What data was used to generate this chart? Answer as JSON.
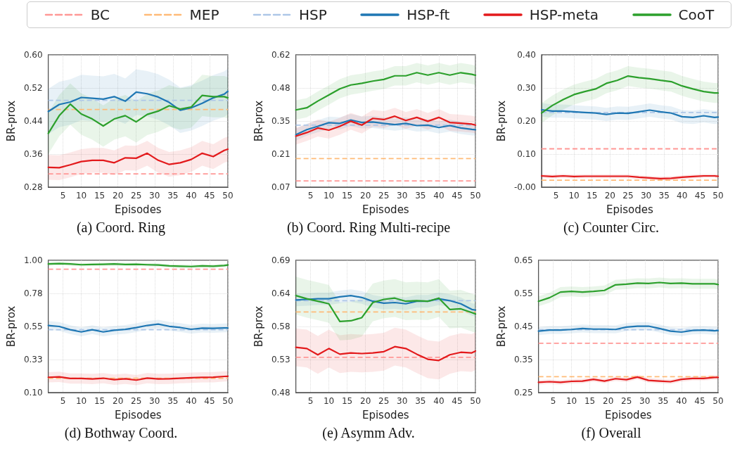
{
  "chart_data": [
    {
      "type": "line",
      "title": "(a) Coord. Ring",
      "xlabel": "Episodes",
      "ylabel": "BR-prox",
      "legend": "top",
      "grid": true,
      "marker": "none",
      "line_style": "solid",
      "xlim": [
        1,
        50
      ],
      "xticks": [
        5,
        10,
        15,
        20,
        25,
        30,
        35,
        40,
        45,
        50
      ],
      "ylim": [
        0.28,
        0.6
      ],
      "yticks": [
        {
          "value": 0.28,
          "label": "0.28"
        },
        {
          "value": 0.36,
          "label": "0.36"
        },
        {
          "value": 0.44,
          "label": "0.44"
        },
        {
          "value": 0.52,
          "label": "0.52"
        },
        {
          "value": 0.6,
          "label": "0.60"
        }
      ],
      "x": [
        1,
        4,
        7,
        10,
        13,
        16,
        19,
        22,
        25,
        28,
        31,
        34,
        37,
        40,
        43,
        46,
        49,
        50
      ],
      "ref_lines": [
        {
          "axis": "y",
          "value": 0.312,
          "label": "BC",
          "color": "#ff9896",
          "line_style": "dashed"
        },
        {
          "axis": "y",
          "value": 0.468,
          "label": "MEP",
          "color": "#ffbb78",
          "line_style": "dashed"
        },
        {
          "axis": "y",
          "value": 0.49,
          "label": "HSP",
          "color": "#aec7e8",
          "line_style": "dashed"
        }
      ],
      "series": [
        {
          "name": "HSP-ft",
          "color": "#1f77b4",
          "values": [
            0.463,
            0.48,
            0.486,
            0.497,
            0.495,
            0.493,
            0.499,
            0.488,
            0.51,
            0.506,
            0.498,
            0.485,
            0.466,
            0.472,
            0.483,
            0.496,
            0.505,
            0.512
          ],
          "lower": [
            0.408,
            0.425,
            0.431,
            0.442,
            0.44,
            0.438,
            0.444,
            0.433,
            0.455,
            0.451,
            0.443,
            0.43,
            0.411,
            0.417,
            0.428,
            0.441,
            0.45,
            0.457
          ],
          "upper": [
            0.518,
            0.535,
            0.541,
            0.552,
            0.55,
            0.548,
            0.554,
            0.543,
            0.565,
            0.561,
            0.553,
            0.54,
            0.521,
            0.527,
            0.538,
            0.551,
            0.56,
            0.567
          ]
        },
        {
          "name": "HSP-meta",
          "color": "#e31a1c",
          "values": [
            0.328,
            0.327,
            0.334,
            0.342,
            0.345,
            0.345,
            0.339,
            0.351,
            0.35,
            0.362,
            0.345,
            0.335,
            0.339,
            0.347,
            0.362,
            0.354,
            0.369,
            0.372
          ],
          "lower": [
            0.298,
            0.297,
            0.304,
            0.312,
            0.315,
            0.315,
            0.309,
            0.321,
            0.32,
            0.332,
            0.315,
            0.305,
            0.309,
            0.317,
            0.332,
            0.324,
            0.339,
            0.342
          ],
          "upper": [
            0.358,
            0.357,
            0.364,
            0.372,
            0.375,
            0.375,
            0.369,
            0.381,
            0.38,
            0.392,
            0.375,
            0.365,
            0.369,
            0.377,
            0.392,
            0.384,
            0.399,
            0.402
          ]
        },
        {
          "name": "CooT",
          "color": "#2ca02c",
          "values": [
            0.41,
            0.453,
            0.481,
            0.457,
            0.445,
            0.428,
            0.445,
            0.453,
            0.438,
            0.456,
            0.464,
            0.477,
            0.469,
            0.474,
            0.502,
            0.499,
            0.499,
            0.496
          ],
          "lower": [
            0.36,
            0.403,
            0.431,
            0.407,
            0.395,
            0.378,
            0.395,
            0.403,
            0.388,
            0.406,
            0.414,
            0.427,
            0.419,
            0.424,
            0.452,
            0.449,
            0.449,
            0.446
          ],
          "upper": [
            0.46,
            0.503,
            0.531,
            0.507,
            0.495,
            0.478,
            0.495,
            0.503,
            0.488,
            0.506,
            0.514,
            0.527,
            0.519,
            0.524,
            0.552,
            0.549,
            0.549,
            0.546
          ]
        }
      ]
    },
    {
      "type": "line",
      "title": "(b) Coord. Ring Multi-recipe",
      "xlabel": "Episodes",
      "ylabel": "BR-prox",
      "grid": true,
      "marker": "none",
      "line_style": "solid",
      "xlim": [
        1,
        50
      ],
      "xticks": [
        5,
        10,
        15,
        20,
        25,
        30,
        35,
        40,
        45,
        50
      ],
      "ylim": [
        0.07,
        0.62
      ],
      "yticks": [
        {
          "value": 0.07,
          "label": "0.07"
        },
        {
          "value": 0.2075,
          "label": "0.21"
        },
        {
          "value": 0.345,
          "label": "0.35"
        },
        {
          "value": 0.4825,
          "label": "0.48"
        },
        {
          "value": 0.62,
          "label": "0.62"
        }
      ],
      "x": [
        1,
        4,
        7,
        10,
        13,
        16,
        19,
        22,
        25,
        28,
        31,
        34,
        37,
        40,
        43,
        46,
        49,
        50
      ],
      "ref_lines": [
        {
          "axis": "y",
          "value": 0.096,
          "color": "#ff9896",
          "line_style": "dashed"
        },
        {
          "axis": "y",
          "value": 0.189,
          "color": "#ffbb78",
          "line_style": "dashed"
        },
        {
          "axis": "y",
          "value": 0.328,
          "color": "#aec7e8",
          "line_style": "dashed"
        }
      ],
      "series": [
        {
          "name": "HSP-ft",
          "color": "#1f77b4",
          "values": [
            0.288,
            0.309,
            0.323,
            0.338,
            0.335,
            0.349,
            0.339,
            0.341,
            0.335,
            0.33,
            0.335,
            0.326,
            0.328,
            0.318,
            0.326,
            0.316,
            0.31,
            0.309
          ],
          "lower": [
            0.263,
            0.284,
            0.298,
            0.313,
            0.31,
            0.324,
            0.314,
            0.316,
            0.31,
            0.305,
            0.31,
            0.301,
            0.303,
            0.293,
            0.301,
            0.291,
            0.285,
            0.284
          ],
          "upper": [
            0.313,
            0.334,
            0.348,
            0.363,
            0.36,
            0.374,
            0.364,
            0.366,
            0.36,
            0.355,
            0.36,
            0.351,
            0.353,
            0.343,
            0.351,
            0.341,
            0.335,
            0.334
          ]
        },
        {
          "name": "HSP-meta",
          "color": "#e31a1c",
          "values": [
            0.282,
            0.297,
            0.316,
            0.307,
            0.323,
            0.344,
            0.328,
            0.356,
            0.351,
            0.365,
            0.347,
            0.36,
            0.344,
            0.36,
            0.339,
            0.336,
            0.332,
            0.328
          ],
          "lower": [
            0.247,
            0.262,
            0.281,
            0.272,
            0.288,
            0.309,
            0.293,
            0.321,
            0.316,
            0.33,
            0.312,
            0.325,
            0.309,
            0.325,
            0.304,
            0.301,
            0.297,
            0.293
          ],
          "upper": [
            0.317,
            0.332,
            0.351,
            0.342,
            0.358,
            0.379,
            0.363,
            0.391,
            0.386,
            0.4,
            0.382,
            0.395,
            0.379,
            0.395,
            0.374,
            0.371,
            0.367,
            0.363
          ]
        },
        {
          "name": "CooT",
          "color": "#2ca02c",
          "values": [
            0.391,
            0.4,
            0.428,
            0.453,
            0.479,
            0.495,
            0.502,
            0.511,
            0.518,
            0.533,
            0.533,
            0.546,
            0.536,
            0.546,
            0.536,
            0.546,
            0.539,
            0.535
          ],
          "lower": [
            0.351,
            0.36,
            0.388,
            0.413,
            0.439,
            0.455,
            0.462,
            0.471,
            0.478,
            0.493,
            0.493,
            0.506,
            0.496,
            0.506,
            0.496,
            0.506,
            0.499,
            0.495
          ],
          "upper": [
            0.431,
            0.44,
            0.468,
            0.493,
            0.519,
            0.535,
            0.542,
            0.551,
            0.558,
            0.573,
            0.573,
            0.586,
            0.576,
            0.586,
            0.576,
            0.586,
            0.579,
            0.575
          ]
        }
      ]
    },
    {
      "type": "line",
      "title": "(c) Counter Circ.",
      "xlabel": "Episodes",
      "ylabel": "BR-prox",
      "grid": true,
      "marker": "none",
      "line_style": "solid",
      "xlim": [
        1,
        50
      ],
      "xticks": [
        5,
        10,
        15,
        20,
        25,
        30,
        35,
        40,
        45,
        50
      ],
      "ylim": [
        0,
        0.4
      ],
      "yticks": [
        {
          "value": 0,
          "label": "-0.00"
        },
        {
          "value": 0.1,
          "label": "0.10"
        },
        {
          "value": 0.2,
          "label": "0.20"
        },
        {
          "value": 0.3,
          "label": "0.30"
        },
        {
          "value": 0.4,
          "label": "0.40"
        }
      ],
      "x": [
        1,
        4,
        7,
        10,
        13,
        16,
        19,
        22,
        25,
        28,
        31,
        34,
        37,
        40,
        43,
        46,
        49,
        50
      ],
      "ref_lines": [
        {
          "axis": "y",
          "value": 0.116,
          "color": "#ff9896",
          "line_style": "dashed"
        },
        {
          "axis": "y",
          "value": 0.021,
          "color": "#ffbb78",
          "line_style": "dashed"
        },
        {
          "axis": "y",
          "value": 0.226,
          "color": "#aec7e8",
          "line_style": "dashed"
        }
      ],
      "series": [
        {
          "name": "HSP-ft",
          "color": "#1f77b4",
          "values": [
            0.234,
            0.23,
            0.23,
            0.228,
            0.226,
            0.224,
            0.22,
            0.224,
            0.223,
            0.228,
            0.233,
            0.228,
            0.224,
            0.213,
            0.211,
            0.216,
            0.211,
            0.212
          ],
          "lower": [
            0.214,
            0.21,
            0.21,
            0.208,
            0.206,
            0.204,
            0.2,
            0.204,
            0.203,
            0.208,
            0.213,
            0.208,
            0.204,
            0.193,
            0.191,
            0.196,
            0.191,
            0.192
          ],
          "upper": [
            0.254,
            0.25,
            0.25,
            0.248,
            0.246,
            0.244,
            0.24,
            0.244,
            0.243,
            0.248,
            0.253,
            0.248,
            0.244,
            0.233,
            0.231,
            0.236,
            0.231,
            0.232
          ]
        },
        {
          "name": "HSP-meta",
          "color": "#e31a1c",
          "values": [
            0.034,
            0.032,
            0.034,
            0.032,
            0.033,
            0.033,
            0.033,
            0.033,
            0.033,
            0.03,
            0.028,
            0.026,
            0.027,
            0.03,
            0.032,
            0.034,
            0.034,
            0.033
          ],
          "lower": [
            0.028,
            0.026,
            0.028,
            0.026,
            0.027,
            0.027,
            0.027,
            0.027,
            0.027,
            0.024,
            0.022,
            0.02,
            0.021,
            0.024,
            0.026,
            0.028,
            0.028,
            0.027
          ],
          "upper": [
            0.04,
            0.038,
            0.04,
            0.038,
            0.039,
            0.039,
            0.039,
            0.039,
            0.039,
            0.036,
            0.034,
            0.032,
            0.033,
            0.036,
            0.038,
            0.04,
            0.04,
            0.039
          ]
        },
        {
          "name": "CooT",
          "color": "#2ca02c",
          "values": [
            0.224,
            0.247,
            0.265,
            0.28,
            0.289,
            0.297,
            0.314,
            0.323,
            0.336,
            0.331,
            0.328,
            0.323,
            0.319,
            0.306,
            0.297,
            0.289,
            0.285,
            0.285
          ],
          "lower": [
            0.194,
            0.217,
            0.235,
            0.25,
            0.259,
            0.267,
            0.284,
            0.293,
            0.306,
            0.301,
            0.298,
            0.293,
            0.289,
            0.276,
            0.267,
            0.259,
            0.255,
            0.255
          ],
          "upper": [
            0.254,
            0.277,
            0.295,
            0.31,
            0.319,
            0.327,
            0.344,
            0.353,
            0.366,
            0.361,
            0.358,
            0.353,
            0.349,
            0.336,
            0.327,
            0.319,
            0.315,
            0.315
          ]
        }
      ]
    },
    {
      "type": "line",
      "title": "(d) Bothway Coord.",
      "xlabel": "Episodes",
      "ylabel": "BR-prox",
      "grid": true,
      "marker": "none",
      "line_style": "solid",
      "xlim": [
        1,
        50
      ],
      "xticks": [
        5,
        10,
        15,
        20,
        25,
        30,
        35,
        40,
        45,
        50
      ],
      "ylim": [
        0.1,
        1
      ],
      "yticks": [
        {
          "value": 0.1,
          "label": "0.10"
        },
        {
          "value": 0.325,
          "label": "0.33"
        },
        {
          "value": 0.55,
          "label": "0.55"
        },
        {
          "value": 0.775,
          "label": "0.78"
        },
        {
          "value": 1,
          "label": "1.00"
        }
      ],
      "x": [
        1,
        4,
        7,
        10,
        13,
        16,
        19,
        22,
        25,
        28,
        31,
        34,
        37,
        40,
        43,
        46,
        49,
        50
      ],
      "ref_lines": [
        {
          "axis": "y",
          "value": 0.94,
          "color": "#ff9896",
          "line_style": "dashed"
        },
        {
          "axis": "y",
          "value": 0.198,
          "color": "#ffbb78",
          "line_style": "dashed"
        },
        {
          "axis": "y",
          "value": 0.528,
          "color": "#aec7e8",
          "line_style": "dashed"
        }
      ],
      "series": [
        {
          "name": "HSP-ft",
          "color": "#1f77b4",
          "values": [
            0.557,
            0.55,
            0.528,
            0.513,
            0.528,
            0.513,
            0.524,
            0.53,
            0.542,
            0.557,
            0.566,
            0.551,
            0.543,
            0.531,
            0.539,
            0.537,
            0.54,
            0.54
          ],
          "lower": [
            0.527,
            0.52,
            0.498,
            0.483,
            0.498,
            0.483,
            0.494,
            0.5,
            0.512,
            0.527,
            0.536,
            0.521,
            0.513,
            0.501,
            0.509,
            0.507,
            0.51,
            0.51
          ],
          "upper": [
            0.587,
            0.58,
            0.558,
            0.543,
            0.558,
            0.543,
            0.554,
            0.56,
            0.572,
            0.587,
            0.596,
            0.581,
            0.573,
            0.561,
            0.569,
            0.567,
            0.57,
            0.57
          ]
        },
        {
          "name": "HSP-meta",
          "color": "#e31a1c",
          "values": [
            0.204,
            0.207,
            0.196,
            0.196,
            0.193,
            0.198,
            0.188,
            0.194,
            0.185,
            0.199,
            0.193,
            0.194,
            0.198,
            0.201,
            0.204,
            0.205,
            0.21,
            0.211
          ],
          "lower": [
            0.169,
            0.172,
            0.161,
            0.161,
            0.158,
            0.163,
            0.153,
            0.159,
            0.15,
            0.164,
            0.158,
            0.159,
            0.163,
            0.166,
            0.169,
            0.17,
            0.175,
            0.176
          ],
          "upper": [
            0.239,
            0.242,
            0.231,
            0.231,
            0.228,
            0.233,
            0.223,
            0.229,
            0.22,
            0.234,
            0.228,
            0.229,
            0.233,
            0.236,
            0.239,
            0.24,
            0.245,
            0.246
          ]
        },
        {
          "name": "CooT",
          "color": "#2ca02c",
          "values": [
            0.975,
            0.978,
            0.975,
            0.97,
            0.972,
            0.973,
            0.975,
            0.972,
            0.973,
            0.97,
            0.968,
            0.962,
            0.96,
            0.958,
            0.962,
            0.96,
            0.965,
            0.968
          ],
          "lower": [
            0.963,
            0.966,
            0.963,
            0.958,
            0.96,
            0.961,
            0.963,
            0.96,
            0.961,
            0.958,
            0.956,
            0.95,
            0.948,
            0.946,
            0.95,
            0.948,
            0.953,
            0.956
          ],
          "upper": [
            0.987,
            0.99,
            0.987,
            0.982,
            0.984,
            0.985,
            0.987,
            0.984,
            0.985,
            0.982,
            0.98,
            0.974,
            0.972,
            0.97,
            0.974,
            0.972,
            0.977,
            0.98
          ]
        }
      ]
    },
    {
      "type": "line",
      "title": "(e) Asymm Adv.",
      "xlabel": "Episodes",
      "ylabel": "BR-prox",
      "grid": true,
      "marker": "none",
      "line_style": "solid",
      "xlim": [
        1,
        50
      ],
      "xticks": [
        5,
        10,
        15,
        20,
        25,
        30,
        35,
        40,
        45,
        50
      ],
      "ylim": [
        0.48,
        0.69
      ],
      "yticks": [
        {
          "value": 0.48,
          "label": "0.48"
        },
        {
          "value": 0.5325,
          "label": "0.53"
        },
        {
          "value": 0.585,
          "label": "0.58"
        },
        {
          "value": 0.6375,
          "label": "0.64"
        },
        {
          "value": 0.69,
          "label": "0.69"
        }
      ],
      "x": [
        1,
        4,
        7,
        10,
        13,
        16,
        19,
        22,
        25,
        28,
        31,
        34,
        37,
        40,
        43,
        46,
        49,
        50
      ],
      "ref_lines": [
        {
          "axis": "y",
          "value": 0.536,
          "color": "#ff9896",
          "line_style": "dashed"
        },
        {
          "axis": "y",
          "value": 0.608,
          "color": "#ffbb78",
          "line_style": "dashed"
        },
        {
          "axis": "y",
          "value": 0.626,
          "color": "#aec7e8",
          "line_style": "dashed"
        }
      ],
      "series": [
        {
          "name": "HSP-ft",
          "color": "#1f77b4",
          "values": [
            0.627,
            0.628,
            0.629,
            0.629,
            0.632,
            0.634,
            0.631,
            0.625,
            0.622,
            0.623,
            0.621,
            0.625,
            0.625,
            0.629,
            0.626,
            0.621,
            0.612,
            0.611
          ],
          "lower": [
            0.617,
            0.618,
            0.619,
            0.619,
            0.622,
            0.624,
            0.621,
            0.615,
            0.612,
            0.613,
            0.611,
            0.615,
            0.615,
            0.619,
            0.616,
            0.611,
            0.602,
            0.601
          ],
          "upper": [
            0.637,
            0.638,
            0.639,
            0.639,
            0.642,
            0.644,
            0.641,
            0.635,
            0.632,
            0.633,
            0.631,
            0.635,
            0.635,
            0.639,
            0.636,
            0.631,
            0.622,
            0.621
          ]
        },
        {
          "name": "HSP-meta",
          "color": "#e31a1c",
          "values": [
            0.552,
            0.55,
            0.54,
            0.55,
            0.541,
            0.543,
            0.542,
            0.543,
            0.545,
            0.553,
            0.55,
            0.541,
            0.533,
            0.531,
            0.54,
            0.544,
            0.543,
            0.546
          ],
          "lower": [
            0.522,
            0.52,
            0.51,
            0.52,
            0.511,
            0.513,
            0.512,
            0.513,
            0.515,
            0.523,
            0.52,
            0.511,
            0.503,
            0.501,
            0.51,
            0.514,
            0.513,
            0.516
          ],
          "upper": [
            0.582,
            0.58,
            0.57,
            0.58,
            0.571,
            0.573,
            0.572,
            0.573,
            0.575,
            0.583,
            0.58,
            0.571,
            0.563,
            0.561,
            0.57,
            0.574,
            0.573,
            0.576
          ]
        },
        {
          "name": "CooT",
          "color": "#2ca02c",
          "values": [
            0.634,
            0.629,
            0.625,
            0.621,
            0.593,
            0.594,
            0.599,
            0.623,
            0.628,
            0.63,
            0.625,
            0.626,
            0.625,
            0.63,
            0.612,
            0.613,
            0.607,
            0.605
          ],
          "lower": [
            0.604,
            0.599,
            0.595,
            0.591,
            0.563,
            0.564,
            0.569,
            0.593,
            0.598,
            0.6,
            0.595,
            0.596,
            0.595,
            0.6,
            0.582,
            0.583,
            0.577,
            0.575
          ],
          "upper": [
            0.664,
            0.659,
            0.655,
            0.651,
            0.623,
            0.624,
            0.629,
            0.653,
            0.658,
            0.66,
            0.655,
            0.656,
            0.655,
            0.66,
            0.642,
            0.643,
            0.637,
            0.635
          ]
        }
      ]
    },
    {
      "type": "line",
      "title": "(f) Overall",
      "xlabel": "Episodes",
      "ylabel": "BR-prox",
      "grid": true,
      "marker": "none",
      "line_style": "solid",
      "xlim": [
        1,
        50
      ],
      "xticks": [
        5,
        10,
        15,
        20,
        25,
        30,
        35,
        40,
        45,
        50
      ],
      "ylim": [
        0.25,
        0.65
      ],
      "yticks": [
        {
          "value": 0.25,
          "label": "0.25"
        },
        {
          "value": 0.35,
          "label": "0.35"
        },
        {
          "value": 0.45,
          "label": "0.45"
        },
        {
          "value": 0.55,
          "label": "0.55"
        },
        {
          "value": 0.65,
          "label": "0.65"
        }
      ],
      "x": [
        1,
        4,
        7,
        10,
        13,
        16,
        19,
        22,
        25,
        28,
        31,
        34,
        37,
        40,
        43,
        46,
        49,
        50
      ],
      "ref_lines": [
        {
          "axis": "y",
          "value": 0.399,
          "color": "#ff9896",
          "line_style": "dashed"
        },
        {
          "axis": "y",
          "value": 0.298,
          "color": "#ffbb78",
          "line_style": "dashed"
        },
        {
          "axis": "y",
          "value": 0.44,
          "color": "#aec7e8",
          "line_style": "dashed"
        }
      ],
      "series": [
        {
          "name": "HSP-ft",
          "color": "#1f77b4",
          "values": [
            0.436,
            0.439,
            0.439,
            0.441,
            0.444,
            0.442,
            0.442,
            0.441,
            0.448,
            0.451,
            0.451,
            0.444,
            0.436,
            0.433,
            0.438,
            0.439,
            0.437,
            0.438
          ],
          "lower": [
            0.424,
            0.427,
            0.427,
            0.429,
            0.432,
            0.43,
            0.43,
            0.429,
            0.436,
            0.439,
            0.439,
            0.432,
            0.424,
            0.421,
            0.426,
            0.427,
            0.425,
            0.426
          ],
          "upper": [
            0.448,
            0.451,
            0.451,
            0.453,
            0.456,
            0.454,
            0.454,
            0.453,
            0.46,
            0.463,
            0.463,
            0.456,
            0.448,
            0.445,
            0.45,
            0.451,
            0.449,
            0.45
          ]
        },
        {
          "name": "HSP-meta",
          "color": "#e31a1c",
          "values": [
            0.281,
            0.283,
            0.281,
            0.284,
            0.285,
            0.29,
            0.285,
            0.292,
            0.289,
            0.297,
            0.287,
            0.285,
            0.283,
            0.29,
            0.293,
            0.293,
            0.296,
            0.296
          ],
          "lower": [
            0.274,
            0.276,
            0.274,
            0.277,
            0.278,
            0.283,
            0.278,
            0.285,
            0.282,
            0.29,
            0.28,
            0.278,
            0.276,
            0.283,
            0.286,
            0.286,
            0.289,
            0.289
          ],
          "upper": [
            0.288,
            0.29,
            0.288,
            0.291,
            0.292,
            0.297,
            0.292,
            0.299,
            0.296,
            0.304,
            0.294,
            0.292,
            0.29,
            0.297,
            0.3,
            0.3,
            0.303,
            0.303
          ]
        },
        {
          "name": "CooT",
          "color": "#2ca02c",
          "values": [
            0.526,
            0.537,
            0.554,
            0.556,
            0.554,
            0.556,
            0.559,
            0.576,
            0.578,
            0.581,
            0.58,
            0.583,
            0.58,
            0.581,
            0.579,
            0.579,
            0.579,
            0.577
          ],
          "lower": [
            0.511,
            0.522,
            0.539,
            0.541,
            0.539,
            0.541,
            0.544,
            0.561,
            0.563,
            0.566,
            0.565,
            0.568,
            0.565,
            0.566,
            0.564,
            0.564,
            0.564,
            0.562
          ],
          "upper": [
            0.541,
            0.552,
            0.569,
            0.571,
            0.569,
            0.571,
            0.574,
            0.591,
            0.593,
            0.596,
            0.595,
            0.598,
            0.595,
            0.596,
            0.594,
            0.594,
            0.594,
            0.592
          ]
        }
      ]
    }
  ]
}
